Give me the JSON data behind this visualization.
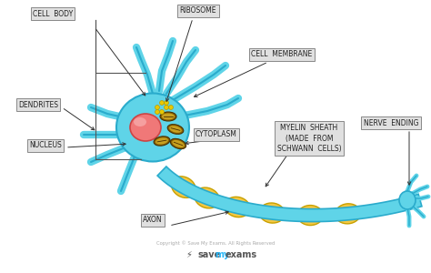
{
  "bg_color": "#ffffff",
  "cell_color": "#5fd4e8",
  "cell_outline": "#2aabcc",
  "nucleus_color": "#f07878",
  "nucleus_outline": "#cc4444",
  "mito_outer": "#8B6400",
  "mito_inner": "#c8a020",
  "ribosome_color": "#e8c800",
  "ribosome_outline": "#b09000",
  "myelin_color": "#f5c842",
  "myelin_outline": "#c8a000",
  "label_bg": "#e0e0e0",
  "label_outline": "#888888",
  "text_color": "#222222",
  "arrow_color": "#333333",
  "labels": {
    "cell_body": "CELL  BODY",
    "ribosome": "RIBOSOME",
    "cell_membrane": "CELL  MEMBRANE",
    "dendrites": "DENDRITES",
    "nucleus": "NUCLEUS",
    "cytoplasm": "CYTOPLASM",
    "myelin_sheath": "MYELIN  SHEATH\n(MADE  FROM\nSCHWANN  CELLS)",
    "nerve_ending": "NERVE  ENDING",
    "axon": "AXON"
  },
  "copyright": "Copyright © Save My Exams. All Rights Reserved",
  "figsize": [
    4.74,
    3.0
  ],
  "dpi": 100
}
